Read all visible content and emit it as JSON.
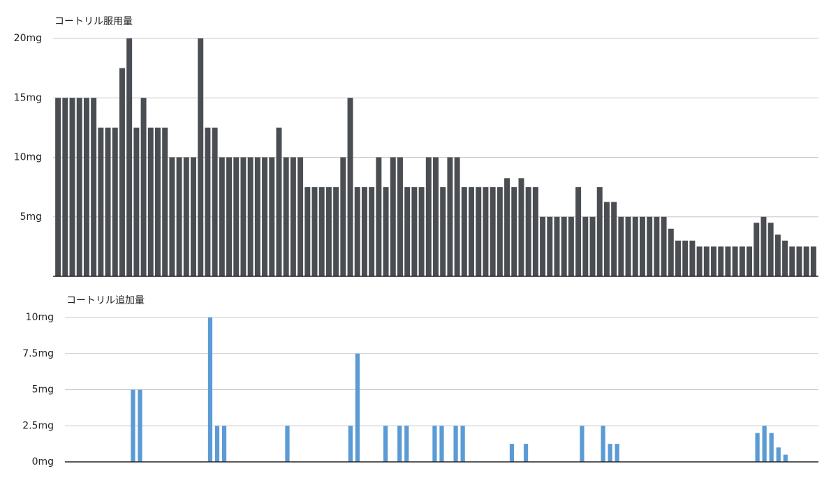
{
  "chart_data": [
    {
      "type": "bar",
      "title": "コートリル服用量",
      "color": "#4a4d52",
      "values": [
        15,
        15,
        15,
        15,
        15,
        15,
        12.5,
        12.5,
        12.5,
        17.5,
        20,
        12.5,
        15,
        12.5,
        12.5,
        12.5,
        10,
        10,
        10,
        10,
        20,
        12.5,
        12.5,
        10,
        10,
        10,
        10,
        10,
        10,
        10,
        10,
        12.5,
        10,
        10,
        10,
        7.5,
        7.5,
        7.5,
        7.5,
        7.5,
        10,
        15,
        7.5,
        7.5,
        7.5,
        10,
        7.5,
        10,
        10,
        7.5,
        7.5,
        7.5,
        10,
        10,
        7.5,
        10,
        10,
        7.5,
        7.5,
        7.5,
        7.5,
        7.5,
        7.5,
        8.25,
        7.5,
        8.25,
        7.5,
        7.5,
        5,
        5,
        5,
        5,
        5,
        7.5,
        5,
        5,
        7.5,
        6.25,
        6.25,
        5,
        5,
        5,
        5,
        5,
        5,
        5,
        4,
        3,
        3,
        3,
        2.5,
        2.5,
        2.5,
        2.5,
        2.5,
        2.5,
        2.5,
        2.5,
        4.5,
        5,
        4.5,
        3.5,
        3,
        2.5,
        2.5,
        2.5,
        2.5
      ],
      "ylim": [
        0,
        20
      ],
      "yticks": [
        {
          "value": 5,
          "label": "5mg"
        },
        {
          "value": 10,
          "label": "10mg"
        },
        {
          "value": 15,
          "label": "15mg"
        },
        {
          "value": 20,
          "label": "20mg"
        }
      ],
      "grid": true
    },
    {
      "type": "bar",
      "title": "コートリル追加量",
      "color": "#5b9bd5",
      "values": [
        0,
        0,
        0,
        0,
        0,
        0,
        0,
        0,
        0,
        5,
        5,
        0,
        0,
        0,
        0,
        0,
        0,
        0,
        0,
        0,
        10,
        2.5,
        2.5,
        0,
        0,
        0,
        0,
        0,
        0,
        0,
        0,
        2.5,
        0,
        0,
        0,
        0,
        0,
        0,
        0,
        0,
        2.5,
        7.5,
        0,
        0,
        0,
        2.5,
        0,
        2.5,
        2.5,
        0,
        0,
        0,
        2.5,
        2.5,
        0,
        2.5,
        2.5,
        0,
        0,
        0,
        0,
        0,
        0,
        1.25,
        0,
        1.25,
        0,
        0,
        0,
        0,
        0,
        0,
        0,
        2.5,
        0,
        0,
        2.5,
        1.25,
        1.25,
        0,
        0,
        0,
        0,
        0,
        0,
        0,
        0,
        0,
        0,
        0,
        0,
        0,
        0,
        0,
        0,
        0,
        0,
        0,
        2,
        2.5,
        2,
        1,
        0.5,
        0,
        0,
        0,
        0
      ],
      "ylim": [
        0,
        10
      ],
      "yticks": [
        {
          "value": 0,
          "label": "0mg"
        },
        {
          "value": 2.5,
          "label": "2.5mg"
        },
        {
          "value": 5,
          "label": "5mg"
        },
        {
          "value": 7.5,
          "label": "7.5mg"
        },
        {
          "value": 10,
          "label": "10mg"
        }
      ],
      "grid": true
    }
  ]
}
